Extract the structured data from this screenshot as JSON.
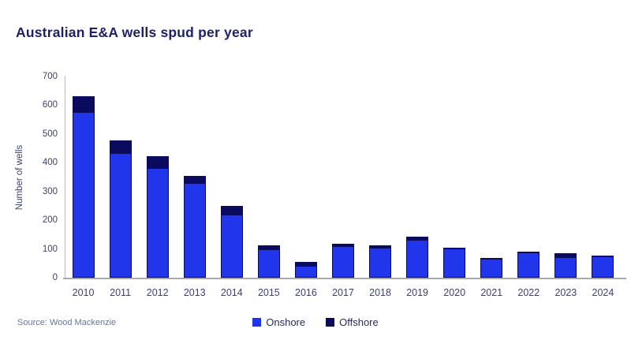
{
  "title": "Australian E&A wells spud per year",
  "source": "Source: Wood Mackenzie",
  "colors": {
    "onshore": "#2136ea",
    "offshore": "#0a0a5e",
    "title_text": "#1f2166",
    "axis_text": "#3b4170"
  },
  "legend": {
    "items": [
      {
        "label": "Onshore",
        "color": "#2136ea"
      },
      {
        "label": "Offshore",
        "color": "#0a0a5e"
      }
    ]
  },
  "chart_data": {
    "type": "bar",
    "stacked": true,
    "title": "Australian E&A wells spud per year",
    "xlabel": "",
    "ylabel": "Number of wells",
    "ylim": [
      0,
      700
    ],
    "yticks": [
      0,
      100,
      200,
      300,
      400,
      500,
      600,
      700
    ],
    "grid": false,
    "legend_position": "bottom",
    "categories": [
      "2010",
      "2011",
      "2012",
      "2013",
      "2014",
      "2015",
      "2016",
      "2017",
      "2018",
      "2019",
      "2020",
      "2021",
      "2022",
      "2023",
      "2024"
    ],
    "series": [
      {
        "name": "Onshore",
        "color": "#2136ea",
        "values": [
          575,
          432,
          380,
          327,
          220,
          98,
          42,
          112,
          105,
          133,
          102,
          66,
          86,
          72,
          75
        ]
      },
      {
        "name": "Offshore",
        "color": "#0a0a5e",
        "values": [
          55,
          45,
          42,
          26,
          30,
          14,
          13,
          7,
          8,
          10,
          3,
          3,
          4,
          13,
          3
        ]
      }
    ]
  }
}
